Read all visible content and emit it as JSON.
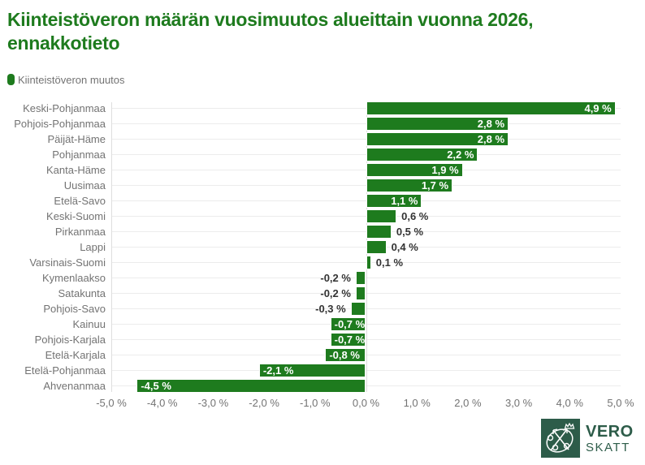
{
  "page": {
    "title_line1": "Kiinteistöveron määrän vuosimuutos alueittain vuonna 2026,",
    "title_line2": "ennakkotieto",
    "title_color": "#1e7b1e"
  },
  "legend": {
    "label": "Kiinteistöveron muutos",
    "marker_color": "#1e7b1e"
  },
  "chart_data": {
    "type": "bar",
    "orientation": "horizontal",
    "title": "Kiinteistöveron määrän vuosimuutos alueittain vuonna 2026, ennakkotieto",
    "series_name": "Kiinteistöveron muutos",
    "categories": [
      "Keski-Pohjanmaa",
      "Pohjois-Pohjanmaa",
      "Päijät-Häme",
      "Pohjanmaa",
      "Kanta-Häme",
      "Uusimaa",
      "Etelä-Savo",
      "Keski-Suomi",
      "Pirkanmaa",
      "Lappi",
      "Varsinais-Suomi",
      "Kymenlaakso",
      "Satakunta",
      "Pohjois-Savo",
      "Kainuu",
      "Pohjois-Karjala",
      "Etelä-Karjala",
      "Etelä-Pohjanmaa",
      "Ahvenanmaa"
    ],
    "values": [
      4.9,
      2.8,
      2.8,
      2.2,
      1.9,
      1.7,
      1.1,
      0.6,
      0.5,
      0.4,
      0.1,
      -0.2,
      -0.2,
      -0.3,
      -0.7,
      -0.7,
      -0.8,
      -2.1,
      -4.5
    ],
    "value_labels": [
      "4,9 %",
      "2,8 %",
      "2,8 %",
      "2,2 %",
      "1,9 %",
      "1,7 %",
      "1,1 %",
      "0,6 %",
      "0,5 %",
      "0,4 %",
      "0,1 %",
      "-0,2 %",
      "-0,2 %",
      "-0,3 %",
      "-0,7 %",
      "-0,7 %",
      "-0,8 %",
      "-2,1 %",
      "-4,5 %"
    ],
    "xlim": [
      -5,
      5
    ],
    "xticks": [
      -5,
      -4,
      -3,
      -2,
      -1,
      0,
      1,
      2,
      3,
      4,
      5
    ],
    "xtick_labels": [
      "-5,0 %",
      "-4,0 %",
      "-3,0 %",
      "-2,0 %",
      "-1,0 %",
      "0,0 %",
      "1,0 %",
      "2,0 %",
      "3,0 %",
      "4,0 %",
      "5,0 %"
    ],
    "bar_color": "#1e7b1e",
    "grid": true,
    "legend_position": "top-left"
  },
  "logo": {
    "line1": "VERO",
    "line2": "SKATT",
    "color": "#2d5c49"
  }
}
